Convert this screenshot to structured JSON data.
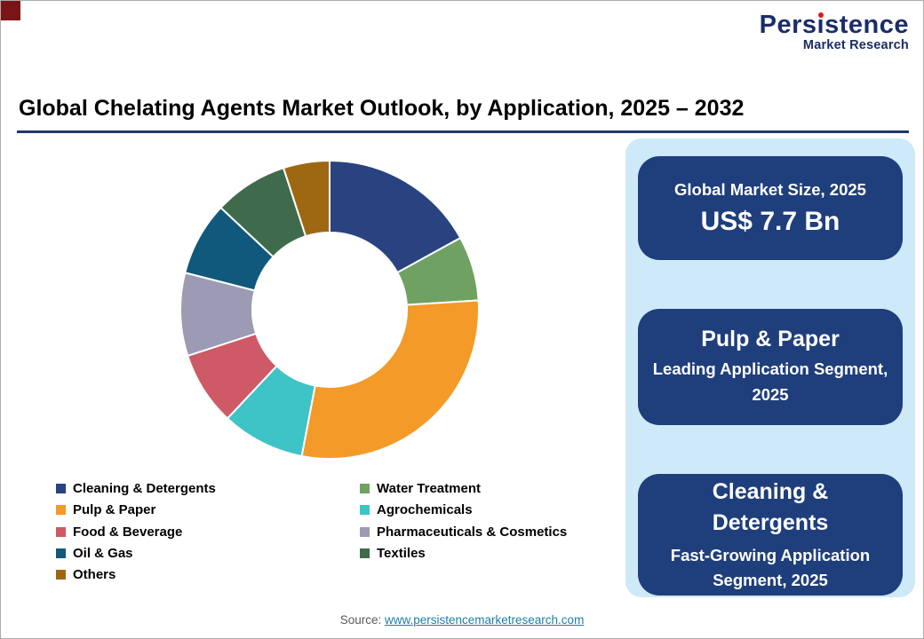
{
  "page": {
    "title": "Global Chelating Agents Market Outlook, by Application, 2025 – 2032",
    "source_label": "Source:",
    "source_link": "www.persistencemarketresearch.com"
  },
  "logo": {
    "wordmark": "Persistence",
    "subtitle": "Market Research"
  },
  "chart_data": {
    "type": "pie",
    "subtype": "donut",
    "title": "Global Chelating Agents Market Outlook, by Application, 2025 – 2032",
    "start_angle_deg": 0,
    "direction": "clockwise",
    "inner_radius_ratio": 0.52,
    "categories": [
      "Cleaning & Detergents",
      "Water Treatment",
      "Pulp & Paper",
      "Agrochemicals",
      "Food & Beverage",
      "Pharmaceuticals & Cosmetics",
      "Oil & Gas",
      "Textiles",
      "Others"
    ],
    "values": [
      17,
      7,
      29,
      9,
      8,
      9,
      8,
      8,
      5
    ],
    "colors": [
      "#28437F",
      "#6FA262",
      "#F49A28",
      "#3EC3C6",
      "#CD5A66",
      "#9D9BB3",
      "#10597C",
      "#406A4C",
      "#9E6813"
    ],
    "legend_position": "bottom"
  },
  "legend": {
    "columns": [
      [
        {
          "label": "Cleaning & Detergents",
          "color": "#28437F"
        },
        {
          "label": "Pulp & Paper",
          "color": "#F49A28"
        },
        {
          "label": "Food & Beverage",
          "color": "#CD5A66"
        },
        {
          "label": "Oil & Gas",
          "color": "#10597C"
        },
        {
          "label": "Others",
          "color": "#9E6813"
        }
      ],
      [
        {
          "label": "Water Treatment",
          "color": "#6FA262"
        },
        {
          "label": "Agrochemicals",
          "color": "#3EC3C6"
        },
        {
          "label": "Pharmaceuticals & Cosmetics",
          "color": "#9D9BB3"
        },
        {
          "label": "Textiles",
          "color": "#406A4C"
        }
      ]
    ]
  },
  "sidebar": {
    "cards": [
      {
        "line1": "Global Market Size, 2025",
        "line2": "US$ 7.7 Bn"
      },
      {
        "line1": "Pulp & Paper",
        "line2": "Leading Application Segment, 2025"
      },
      {
        "line1": "Cleaning & Detergents",
        "line2": "Fast-Growing Application Segment, 2025"
      }
    ]
  },
  "colors": {
    "card_bg": "#1F3E7C",
    "panel_bg": "#CEE9F7",
    "title_rule": "#20386B",
    "logo_navy": "#1B2D69",
    "logo_dot_red": "#E4141E",
    "corner_accent": "#7B1416",
    "link": "#1A7FA8"
  }
}
